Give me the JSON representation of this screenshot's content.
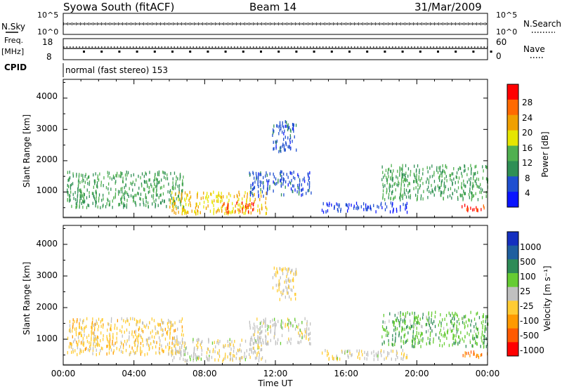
{
  "header": {
    "station": "Syowa South (fitACF)",
    "beam": "Beam 14",
    "date": "31/Mar/2009"
  },
  "aux": {
    "nsky_label": "N.Sky",
    "nsky_ticks": [
      "10^5",
      "10^0"
    ],
    "nsearch_label": "N.Search",
    "nsearch_ticks": [
      "10^5",
      "10^0"
    ],
    "freq_label_1": "Freq.",
    "freq_label_2": "[MHz]",
    "freq_ticks": [
      "18",
      "8"
    ],
    "nave_label": "Nave",
    "nave_ticks": [
      "60",
      "0"
    ],
    "cpid_label": "CPID",
    "cpid_text": "normal (fast stereo) 153"
  },
  "colors": {
    "power_scale": [
      "#0a14ff",
      "#1f4fd0",
      "#2f8f55",
      "#50b050",
      "#e6e600",
      "#f0a000",
      "#ff6a00",
      "#ff0000"
    ],
    "velocity_scale": [
      "#ff0000",
      "#ff5a00",
      "#ff9a00",
      "#ffcc33",
      "#c0c0c0",
      "#66cc33",
      "#2e8b57",
      "#1f5f9f",
      "#1530c0"
    ]
  },
  "chart_data": [
    {
      "type": "heatmap",
      "panel": "power",
      "xlabel": "Time UT",
      "ylabel": "Slant Range [km]",
      "x_range_hours": [
        0,
        24
      ],
      "ylim": [
        180,
        4600
      ],
      "yticks": [
        "1000",
        "2000",
        "3000",
        "4000"
      ],
      "colorbar": {
        "label": "Power [dB]",
        "min": 0,
        "max": 32,
        "ticks": [
          "28",
          "24",
          "20",
          "16",
          "12",
          "8",
          "4"
        ]
      },
      "regions": [
        {
          "t0": 0.2,
          "t1": 6.8,
          "r0": 550,
          "r1": 1700,
          "value": 12
        },
        {
          "t0": 6.0,
          "t1": 11.5,
          "r0": 350,
          "r1": 1050,
          "value": 20
        },
        {
          "t0": 9.0,
          "t1": 10.8,
          "r0": 400,
          "r1": 700,
          "value": 28
        },
        {
          "t0": 10.5,
          "t1": 14.0,
          "r0": 900,
          "r1": 1700,
          "value": 6
        },
        {
          "t0": 11.8,
          "t1": 13.2,
          "r0": 2300,
          "r1": 3300,
          "value": 6
        },
        {
          "t0": 14.5,
          "t1": 19.5,
          "r0": 400,
          "r1": 700,
          "value": 5
        },
        {
          "t0": 18.0,
          "t1": 24.0,
          "r0": 800,
          "r1": 1900,
          "value": 12
        },
        {
          "t0": 22.5,
          "t1": 24.0,
          "r0": 450,
          "r1": 650,
          "value": 28
        }
      ]
    },
    {
      "type": "heatmap",
      "panel": "velocity",
      "xlabel": "Time UT",
      "ylabel": "Slant Range [km]",
      "x_range_hours": [
        0,
        24
      ],
      "ylim": [
        180,
        4600
      ],
      "yticks": [
        "1000",
        "2000",
        "3000",
        "4000"
      ],
      "xticks": [
        "00:00",
        "04:00",
        "08:00",
        "12:00",
        "16:00",
        "20:00",
        "00:00"
      ],
      "colorbar": {
        "label": "Velocity [m s⁻¹]",
        "min": -1500,
        "max": 1500,
        "ticks": [
          "1000",
          "500",
          "100",
          "25",
          "-25",
          "-100",
          "-500",
          "-1000"
        ]
      },
      "regions": [
        {
          "t0": 0.2,
          "t1": 6.8,
          "r0": 550,
          "r1": 1700,
          "value": -300
        },
        {
          "t0": 6.0,
          "t1": 11.5,
          "r0": 350,
          "r1": 1050,
          "value": -60
        },
        {
          "t0": 10.5,
          "t1": 14.0,
          "r0": 900,
          "r1": 1700,
          "value": 0
        },
        {
          "t0": 11.8,
          "t1": 13.2,
          "r0": 2300,
          "r1": 3300,
          "value": -200
        },
        {
          "t0": 14.5,
          "t1": 19.5,
          "r0": 400,
          "r1": 700,
          "value": -80
        },
        {
          "t0": 18.0,
          "t1": 24.0,
          "r0": 800,
          "r1": 1900,
          "value": 400
        },
        {
          "t0": 22.5,
          "t1": 24.0,
          "r0": 450,
          "r1": 650,
          "value": -900
        }
      ]
    }
  ]
}
